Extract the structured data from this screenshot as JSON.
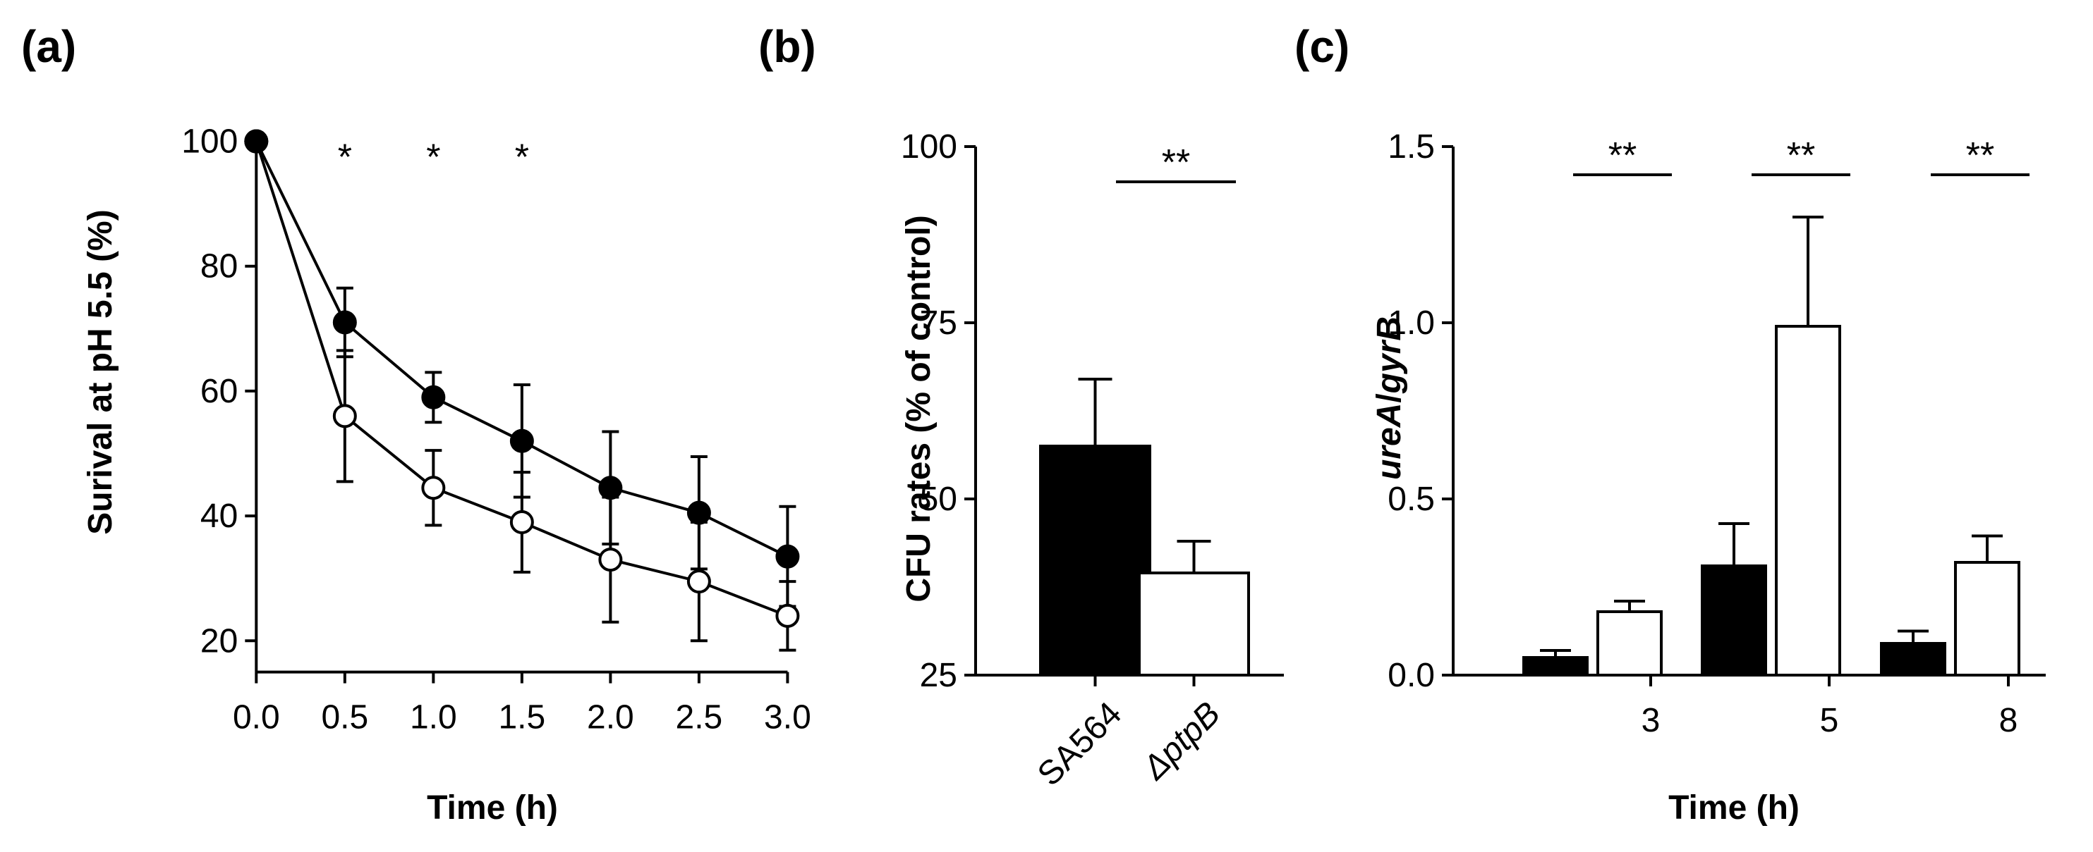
{
  "chart_data": [
    {
      "panel": "(a)",
      "type": "line",
      "title": "",
      "xlabel": "Time (h)",
      "ylabel": "Surival at pH 5.5 (%)",
      "x": [
        0.0,
        0.5,
        1.0,
        1.5,
        2.0,
        2.5,
        3.0
      ],
      "xticks": [
        "0.0",
        "0.5",
        "1.0",
        "1.5",
        "2.0",
        "2.5",
        "3.0"
      ],
      "yticks": [
        "20",
        "40",
        "60",
        "80",
        "100"
      ],
      "xlim": [
        0.0,
        3.0
      ],
      "ylim": [
        15,
        100
      ],
      "series": [
        {
          "name": "SA564",
          "marker": "filled-circle",
          "values": [
            100,
            71,
            59,
            52,
            44.5,
            40.5,
            33.5
          ],
          "errors": [
            0,
            5.5,
            4,
            9,
            9,
            9,
            8
          ]
        },
        {
          "name": "ΔptpB",
          "marker": "open-circle",
          "values": [
            100,
            56,
            44.5,
            39,
            33,
            29.5,
            24
          ],
          "errors": [
            0,
            10.5,
            6,
            8,
            10,
            9.5,
            5.5
          ]
        }
      ],
      "annotations": [
        {
          "x": 0.5,
          "text": "*"
        },
        {
          "x": 1.0,
          "text": "*"
        },
        {
          "x": 1.5,
          "text": "*"
        }
      ]
    },
    {
      "panel": "(b)",
      "type": "bar",
      "title": "",
      "xlabel": "",
      "ylabel": "CFU rates (% of control)",
      "categories": [
        "SA564",
        "ΔptpB"
      ],
      "values": [
        57.5,
        39.5
      ],
      "errors": [
        9.5,
        4.5
      ],
      "fills": [
        "filled",
        "open"
      ],
      "yticks": [
        "25",
        "50",
        "75",
        "100"
      ],
      "ylim": [
        25,
        100
      ],
      "significance": [
        {
          "from": 0,
          "to": 1,
          "text": "**"
        }
      ]
    },
    {
      "panel": "(c)",
      "type": "bar",
      "title": "",
      "xlabel": "Time (h)",
      "ylabel": "ureA/gyrB",
      "ylabel_parts": {
        "a": "ureA",
        "sep": "/",
        "b": "gyrB"
      },
      "categories": [
        "3",
        "5",
        "8"
      ],
      "series": [
        {
          "name": "SA564",
          "fill": "filled",
          "values": [
            0.05,
            0.31,
            0.09
          ],
          "errors": [
            0.02,
            0.12,
            0.035
          ]
        },
        {
          "name": "ΔptpB",
          "fill": "open",
          "values": [
            0.18,
            0.99,
            0.32
          ],
          "errors": [
            0.03,
            0.31,
            0.075
          ]
        }
      ],
      "yticks": [
        "0.0",
        "0.5",
        "1.0",
        "1.5"
      ],
      "ylim": [
        0,
        1.5
      ],
      "significance": [
        {
          "group": 0,
          "text": "**"
        },
        {
          "group": 1,
          "text": "**"
        },
        {
          "group": 2,
          "text": "**"
        }
      ]
    }
  ]
}
